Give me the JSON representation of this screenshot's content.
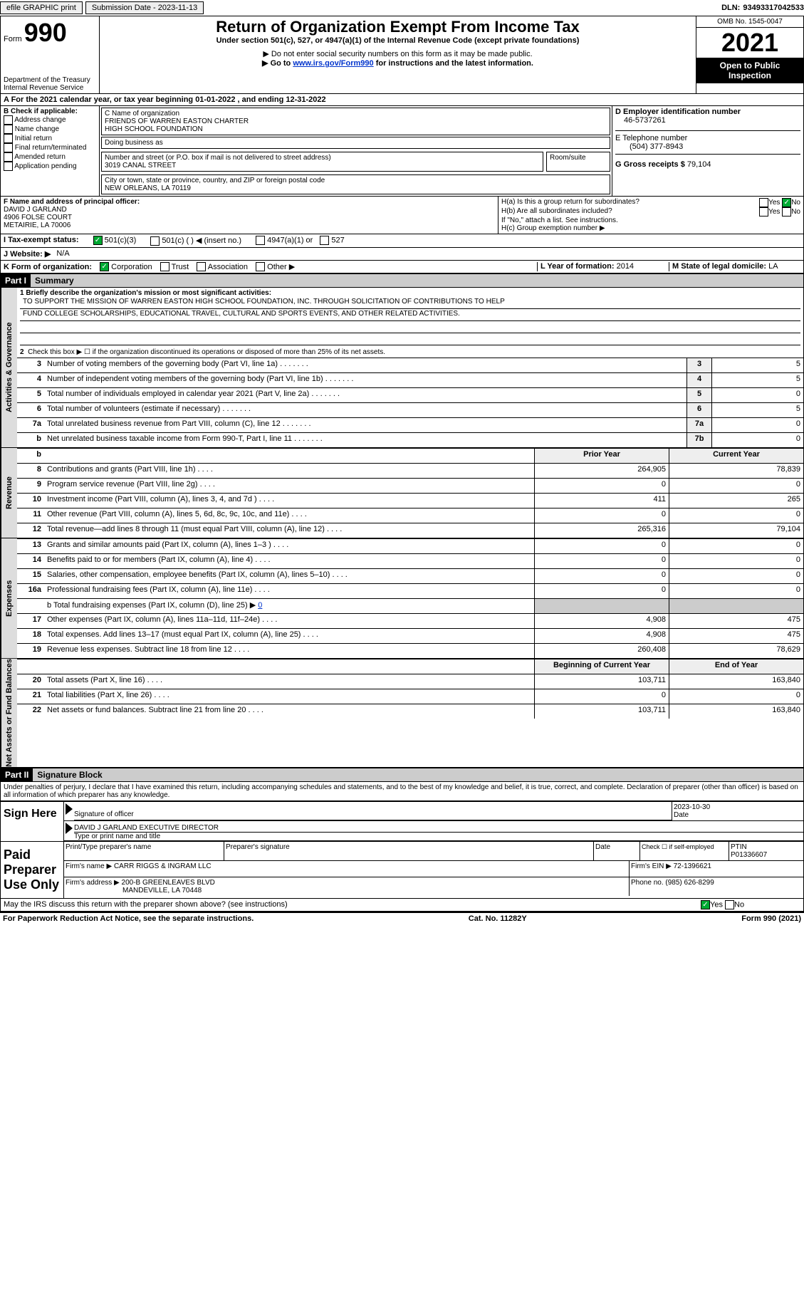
{
  "topbar": {
    "efile": "efile GRAPHIC print",
    "submit": "Submission Date - 2023-11-13",
    "dln_label": "DLN:",
    "dln": "93493317042533"
  },
  "header": {
    "form_label": "Form",
    "form_num": "990",
    "dept": "Department of the Treasury Internal Revenue Service",
    "title": "Return of Organization Exempt From Income Tax",
    "subtitle": "Under section 501(c), 527, or 4947(a)(1) of the Internal Revenue Code (except private foundations)",
    "note1": "▶ Do not enter social security numbers on this form as it may be made public.",
    "note2_pre": "▶ Go to ",
    "note2_link": "www.irs.gov/Form990",
    "note2_post": " for instructions and the latest information.",
    "omb": "OMB No. 1545-0047",
    "year": "2021",
    "inspect": "Open to Public Inspection"
  },
  "block_a": {
    "line": "A For the 2021 calendar year, or tax year beginning 01-01-2022   , and ending 12-31-2022"
  },
  "block_b": {
    "label": "B Check if applicable:",
    "opts": [
      "Address change",
      "Name change",
      "Initial return",
      "Final return/terminated",
      "Amended return",
      "Application pending"
    ]
  },
  "block_c": {
    "name_lbl": "C Name of organization",
    "name1": "FRIENDS OF WARREN EASTON CHARTER",
    "name2": "HIGH SCHOOL FOUNDATION",
    "dba_lbl": "Doing business as",
    "addr_lbl": "Number and street (or P.O. box if mail is not delivered to street address)",
    "room_lbl": "Room/suite",
    "addr": "3019 CANAL STREET",
    "city_lbl": "City or town, state or province, country, and ZIP or foreign postal code",
    "city": "NEW ORLEANS, LA  70119"
  },
  "block_d": {
    "lbl": "D Employer identification number",
    "val": "46-5737261"
  },
  "block_e": {
    "lbl": "E Telephone number",
    "val": "(504) 377-8943"
  },
  "block_g": {
    "lbl": "G Gross receipts $",
    "val": "79,104"
  },
  "block_f": {
    "lbl": "F Name and address of principal officer:",
    "n1": "DAVID J GARLAND",
    "n2": "4906 FOLSE COURT",
    "n3": "METAIRIE, LA  70006"
  },
  "block_h": {
    "a": "H(a)  Is this a group return for subordinates?",
    "b": "H(b)  Are all subordinates included?",
    "note": "If \"No,\" attach a list. See instructions.",
    "c": "H(c)  Group exemption number ▶",
    "yes": "Yes",
    "no": "No"
  },
  "block_i": {
    "lbl": "I  Tax-exempt status:",
    "o1": "501(c)(3)",
    "o2": "501(c) (  ) ◀ (insert no.)",
    "o3": "4947(a)(1) or",
    "o4": "527"
  },
  "block_j": {
    "lbl": "J  Website: ▶",
    "val": "N/A"
  },
  "block_k": {
    "lbl": "K Form of organization:",
    "o1": "Corporation",
    "o2": "Trust",
    "o3": "Association",
    "o4": "Other ▶"
  },
  "block_l": {
    "lbl": "L Year of formation:",
    "val": "2014"
  },
  "block_m": {
    "lbl": "M State of legal domicile:",
    "val": "LA"
  },
  "part1": {
    "header": "Part I",
    "title": "Summary",
    "mission_lbl": "1  Briefly describe the organization's mission or most significant activities:",
    "mission1": "TO SUPPORT THE MISSION OF WARREN EASTON HIGH SCHOOL FOUNDATION, INC. THROUGH SOLICITATION OF CONTRIBUTIONS TO HELP",
    "mission2": "FUND COLLEGE SCHOLARSHIPS, EDUCATIONAL TRAVEL, CULTURAL AND SPORTS EVENTS, AND OTHER RELATED ACTIVITIES.",
    "line2": "Check this box ▶ ☐ if the organization discontinued its operations or disposed of more than 25% of its net assets.",
    "sideA": "Activities & Governance",
    "sideR": "Revenue",
    "sideE": "Expenses",
    "sideN": "Net Assets or Fund Balances",
    "lines_ag": [
      {
        "n": "3",
        "d": "Number of voting members of the governing body (Part VI, line 1a)",
        "b": "3",
        "v": "5"
      },
      {
        "n": "4",
        "d": "Number of independent voting members of the governing body (Part VI, line 1b)",
        "b": "4",
        "v": "5"
      },
      {
        "n": "5",
        "d": "Total number of individuals employed in calendar year 2021 (Part V, line 2a)",
        "b": "5",
        "v": "0"
      },
      {
        "n": "6",
        "d": "Total number of volunteers (estimate if necessary)",
        "b": "6",
        "v": "5"
      },
      {
        "n": "7a",
        "d": "Total unrelated business revenue from Part VIII, column (C), line 12",
        "b": "7a",
        "v": "0"
      },
      {
        "n": "b",
        "d": "Net unrelated business taxable income from Form 990-T, Part I, line 11",
        "b": "7b",
        "v": "0"
      }
    ],
    "col_prior": "Prior Year",
    "col_current": "Current Year",
    "lines_rev": [
      {
        "n": "8",
        "d": "Contributions and grants (Part VIII, line 1h)",
        "p": "264,905",
        "c": "78,839"
      },
      {
        "n": "9",
        "d": "Program service revenue (Part VIII, line 2g)",
        "p": "0",
        "c": "0"
      },
      {
        "n": "10",
        "d": "Investment income (Part VIII, column (A), lines 3, 4, and 7d )",
        "p": "411",
        "c": "265"
      },
      {
        "n": "11",
        "d": "Other revenue (Part VIII, column (A), lines 5, 6d, 8c, 9c, 10c, and 11e)",
        "p": "0",
        "c": "0"
      },
      {
        "n": "12",
        "d": "Total revenue—add lines 8 through 11 (must equal Part VIII, column (A), line 12)",
        "p": "265,316",
        "c": "79,104"
      }
    ],
    "lines_exp": [
      {
        "n": "13",
        "d": "Grants and similar amounts paid (Part IX, column (A), lines 1–3 )",
        "p": "0",
        "c": "0"
      },
      {
        "n": "14",
        "d": "Benefits paid to or for members (Part IX, column (A), line 4)",
        "p": "0",
        "c": "0"
      },
      {
        "n": "15",
        "d": "Salaries, other compensation, employee benefits (Part IX, column (A), lines 5–10)",
        "p": "0",
        "c": "0"
      },
      {
        "n": "16a",
        "d": "Professional fundraising fees (Part IX, column (A), line 11e)",
        "p": "0",
        "c": "0"
      }
    ],
    "line16b": "b  Total fundraising expenses (Part IX, column (D), line 25) ▶",
    "line16b_val": "0",
    "lines_exp2": [
      {
        "n": "17",
        "d": "Other expenses (Part IX, column (A), lines 11a–11d, 11f–24e)",
        "p": "4,908",
        "c": "475"
      },
      {
        "n": "18",
        "d": "Total expenses. Add lines 13–17 (must equal Part IX, column (A), line 25)",
        "p": "4,908",
        "c": "475"
      },
      {
        "n": "19",
        "d": "Revenue less expenses. Subtract line 18 from line 12",
        "p": "260,408",
        "c": "78,629"
      }
    ],
    "col_begin": "Beginning of Current Year",
    "col_end": "End of Year",
    "lines_net": [
      {
        "n": "20",
        "d": "Total assets (Part X, line 16)",
        "p": "103,711",
        "c": "163,840"
      },
      {
        "n": "21",
        "d": "Total liabilities (Part X, line 26)",
        "p": "0",
        "c": "0"
      },
      {
        "n": "22",
        "d": "Net assets or fund balances. Subtract line 21 from line 20",
        "p": "103,711",
        "c": "163,840"
      }
    ]
  },
  "part2": {
    "header": "Part II",
    "title": "Signature Block",
    "decl": "Under penalties of perjury, I declare that I have examined this return, including accompanying schedules and statements, and to the best of my knowledge and belief, it is true, correct, and complete. Declaration of preparer (other than officer) is based on all information of which preparer has any knowledge.",
    "sign_here": "Sign Here",
    "sig_of_officer": "Signature of officer",
    "date_lbl": "Date",
    "date_val": "2023-10-30",
    "officer_name": "DAVID J GARLAND EXECUTIVE DIRECTOR",
    "type_name": "Type or print name and title",
    "paid": "Paid Preparer Use Only",
    "prep_name_lbl": "Print/Type preparer's name",
    "prep_sig_lbl": "Preparer's signature",
    "check_self": "Check ☐ if self-employed",
    "ptin_lbl": "PTIN",
    "ptin": "P01336607",
    "firm_name_lbl": "Firm's name  ▶",
    "firm_name": "CARR RIGGS & INGRAM LLC",
    "firm_ein_lbl": "Firm's EIN ▶",
    "firm_ein": "72-1396621",
    "firm_addr_lbl": "Firm's address ▶",
    "firm_addr1": "200-B GREENLEAVES BLVD",
    "firm_addr2": "MANDEVILLE, LA  70448",
    "phone_lbl": "Phone no.",
    "phone": "(985) 626-8299",
    "discuss": "May the IRS discuss this return with the preparer shown above? (see instructions)",
    "yes": "Yes",
    "no": "No"
  },
  "footer": {
    "l": "For Paperwork Reduction Act Notice, see the separate instructions.",
    "m": "Cat. No. 11282Y",
    "r": "Form 990 (2021)"
  }
}
